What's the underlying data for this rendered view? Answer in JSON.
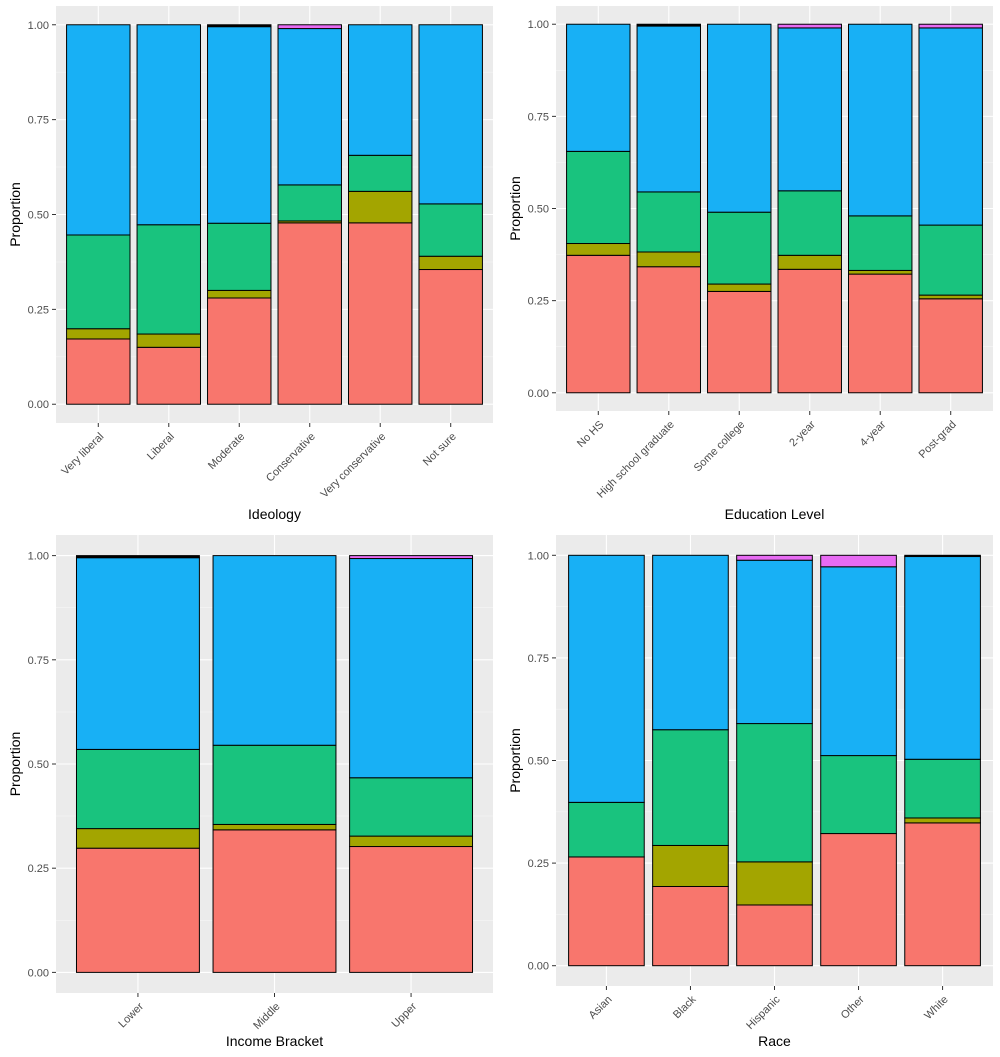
{
  "colors": {
    "panel_bg": "#EBEBEB",
    "grid_major": "#FFFFFF",
    "grid_minor": "#F5F5F5",
    "bar_outline": "#000000",
    "tick_text": "#4D4D4D",
    "segments": [
      "#F8766D",
      "#A3A500",
      "#19C37E",
      "#18B0F5",
      "#E76BF3",
      "#000000"
    ]
  },
  "chart_data": [
    {
      "type": "bar",
      "stacked": true,
      "xlabel": "Ideology",
      "ylabel": "Proportion",
      "ylim": [
        0,
        1
      ],
      "yticks": [
        "0.00",
        "0.25",
        "0.50",
        "0.75",
        "1.00"
      ],
      "categories": [
        "Very liberal",
        "Liberal",
        "Moderate",
        "Conservative",
        "Very conservative",
        "Not sure"
      ],
      "stacks": [
        [
          0.172,
          0.027,
          0.247,
          0.554,
          0,
          0
        ],
        [
          0.15,
          0.035,
          0.288,
          0.527,
          0,
          0
        ],
        [
          0.28,
          0.02,
          0.177,
          0.518,
          0,
          0.005
        ],
        [
          0.478,
          0.005,
          0.095,
          0.412,
          0.01,
          0
        ],
        [
          0.478,
          0.083,
          0.095,
          0.344,
          0,
          0
        ],
        [
          0.355,
          0.035,
          0.138,
          0.472,
          0,
          0
        ]
      ]
    },
    {
      "type": "bar",
      "stacked": true,
      "xlabel": "Education Level",
      "ylabel": "Proportion",
      "ylim": [
        0,
        1
      ],
      "yticks": [
        "0.00",
        "0.25",
        "0.50",
        "0.75",
        "1.00"
      ],
      "categories": [
        "No HS",
        "High school graduate",
        "Some college",
        "2-year",
        "4-year",
        "Post-grad"
      ],
      "stacks": [
        [
          0.373,
          0.032,
          0.25,
          0.345,
          0,
          0
        ],
        [
          0.342,
          0.04,
          0.163,
          0.45,
          0,
          0.005
        ],
        [
          0.275,
          0.02,
          0.195,
          0.51,
          0,
          0
        ],
        [
          0.335,
          0.038,
          0.175,
          0.442,
          0.01,
          0
        ],
        [
          0.322,
          0.01,
          0.148,
          0.52,
          0,
          0
        ],
        [
          0.255,
          0.01,
          0.19,
          0.535,
          0.01,
          0
        ]
      ]
    },
    {
      "type": "bar",
      "stacked": true,
      "xlabel": "Income Bracket",
      "ylabel": "Proportion",
      "ylim": [
        0,
        1
      ],
      "yticks": [
        "0.00",
        "0.25",
        "0.50",
        "0.75",
        "1.00"
      ],
      "categories": [
        "Lower",
        "Middle",
        "Upper"
      ],
      "stacks": [
        [
          0.298,
          0.047,
          0.19,
          0.46,
          0,
          0.005
        ],
        [
          0.342,
          0.013,
          0.19,
          0.455,
          0,
          0
        ],
        [
          0.302,
          0.025,
          0.14,
          0.526,
          0.007,
          0
        ]
      ]
    },
    {
      "type": "bar",
      "stacked": true,
      "xlabel": "Race",
      "ylabel": "Proportion",
      "ylim": [
        0,
        1
      ],
      "yticks": [
        "0.00",
        "0.25",
        "0.50",
        "0.75",
        "1.00"
      ],
      "categories": [
        "Asian",
        "Black",
        "Hispanic",
        "Other",
        "White"
      ],
      "stacks": [
        [
          0.265,
          0,
          0.133,
          0.602,
          0,
          0
        ],
        [
          0.193,
          0.1,
          0.282,
          0.425,
          0,
          0
        ],
        [
          0.148,
          0.105,
          0.337,
          0.398,
          0.012,
          0
        ],
        [
          0.322,
          0,
          0.19,
          0.46,
          0.028,
          0
        ],
        [
          0.348,
          0.012,
          0.143,
          0.494,
          0,
          0.003
        ]
      ]
    }
  ]
}
